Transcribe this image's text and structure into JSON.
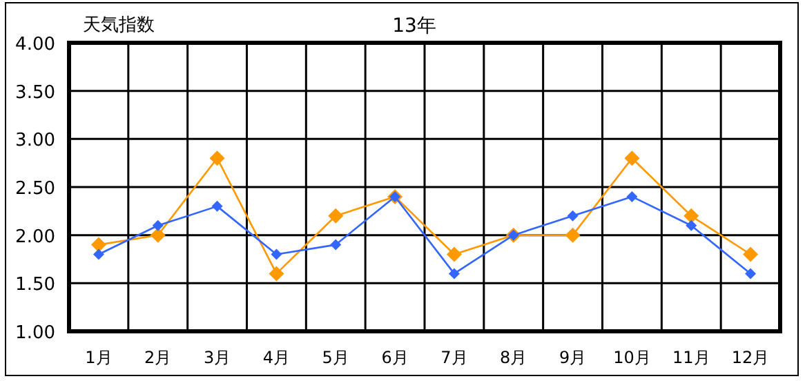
{
  "chart_data": {
    "type": "line",
    "title": "13年",
    "ylabel": "天気指数",
    "categories": [
      "1月",
      "2月",
      "3月",
      "4月",
      "5月",
      "6月",
      "7月",
      "8月",
      "9月",
      "10月",
      "11月",
      "12月"
    ],
    "series": [
      {
        "color": "#ff9900",
        "values": [
          1.9,
          2.0,
          2.8,
          1.6,
          2.2,
          2.4,
          1.8,
          2.0,
          2.0,
          2.8,
          2.2,
          1.8
        ]
      },
      {
        "color": "#3366ff",
        "values": [
          1.8,
          2.1,
          2.3,
          1.8,
          1.9,
          2.4,
          1.6,
          2.0,
          2.2,
          2.4,
          2.1,
          1.6
        ]
      }
    ],
    "ylim": [
      1,
      4
    ],
    "yticks": [
      {
        "value": 1,
        "label": "1.00"
      },
      {
        "value": 1.5,
        "label": "1.50"
      },
      {
        "value": 2,
        "label": "2.00"
      },
      {
        "value": 2.5,
        "label": "2.50"
      },
      {
        "value": 3,
        "label": "3.00"
      },
      {
        "value": 3.5,
        "label": "3.50"
      },
      {
        "value": 4,
        "label": "4.00"
      }
    ],
    "grid": true,
    "marker": "diamond",
    "line_style": "solid"
  }
}
